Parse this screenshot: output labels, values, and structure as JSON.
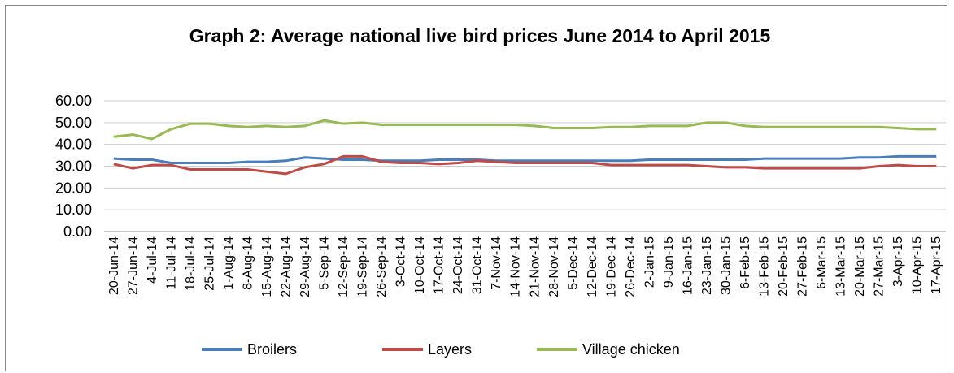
{
  "chart_data": {
    "type": "line",
    "title": "Graph 2: Average national live bird prices June 2014 to April 2015",
    "categories": [
      "20-Jun-14",
      "27-Jun-14",
      "4-Jul-14",
      "11-Jul-14",
      "18-Jul-14",
      "25-Jul-14",
      "1-Aug-14",
      "8-Aug-14",
      "15-Aug-14",
      "22-Aug-14",
      "29-Aug-14",
      "5-Sep-14",
      "12-Sep-14",
      "19-Sep-14",
      "26-Sep-14",
      "3-Oct-14",
      "10-Oct-14",
      "17-Oct-14",
      "24-Oct-14",
      "31-Oct-14",
      "7-Nov-14",
      "14-Nov-14",
      "21-Nov-14",
      "28-Nov-14",
      "5-Dec-14",
      "12-Dec-14",
      "19-Dec-14",
      "26-Dec-14",
      "2-Jan-15",
      "9-Jan-15",
      "16-Jan-15",
      "23-Jan-15",
      "30-Jan-15",
      "6-Feb-15",
      "13-Feb-15",
      "20-Feb-15",
      "27-Feb-15",
      "6-Mar-15",
      "13-Mar-15",
      "20-Mar-15",
      "27-Mar-15",
      "3-Apr-15",
      "10-Apr-15",
      "17-Apr-15"
    ],
    "series": [
      {
        "name": "Broilers",
        "color": "#4a7ebb",
        "values": [
          33.5,
          33,
          33,
          31.5,
          31.5,
          31.5,
          31.5,
          32,
          32,
          32.5,
          34,
          33.5,
          33,
          33,
          32.5,
          32.5,
          32.5,
          33,
          33,
          33,
          32.5,
          32.5,
          32.5,
          32.5,
          32.5,
          32.5,
          32.5,
          32.5,
          33,
          33,
          33,
          33,
          33,
          33,
          33.5,
          33.5,
          33.5,
          33.5,
          33.5,
          34,
          34,
          34.5,
          34.5,
          34.5
        ]
      },
      {
        "name": "Layers",
        "color": "#be4b48",
        "values": [
          31,
          29,
          30.5,
          30.5,
          28.5,
          28.5,
          28.5,
          28.5,
          27.5,
          26.5,
          29.5,
          31,
          34.5,
          34.5,
          32,
          31.5,
          31.5,
          31,
          31.5,
          32.5,
          32,
          31.5,
          31.5,
          31.5,
          31.5,
          31.5,
          30.5,
          30.5,
          30.5,
          30.5,
          30.5,
          30,
          29.5,
          29.5,
          29,
          29,
          29,
          29,
          29,
          29,
          30,
          30.5,
          30,
          30
        ]
      },
      {
        "name": "Village chicken",
        "color": "#98b954",
        "values": [
          43.5,
          44.5,
          42.5,
          47,
          49.5,
          49.5,
          48.5,
          48,
          48.5,
          48,
          48.5,
          51,
          49.5,
          50,
          49,
          49,
          49,
          49,
          49,
          49,
          49,
          49,
          48.5,
          47.5,
          47.5,
          47.5,
          48,
          48,
          48.5,
          48.5,
          48.5,
          50,
          50,
          48.5,
          48,
          48,
          48,
          48,
          48,
          48,
          48,
          47.5,
          47,
          47
        ]
      }
    ],
    "ylim": [
      0,
      60
    ],
    "yticks": [
      {
        "value": 0,
        "label": "0.00"
      },
      {
        "value": 10,
        "label": "10.00"
      },
      {
        "value": 20,
        "label": "20.00"
      },
      {
        "value": 30,
        "label": "30.00"
      },
      {
        "value": 40,
        "label": "40.00"
      },
      {
        "value": 50,
        "label": "50.00"
      },
      {
        "value": 60,
        "label": "60.00"
      }
    ],
    "grid": true,
    "legend": "bottom"
  }
}
